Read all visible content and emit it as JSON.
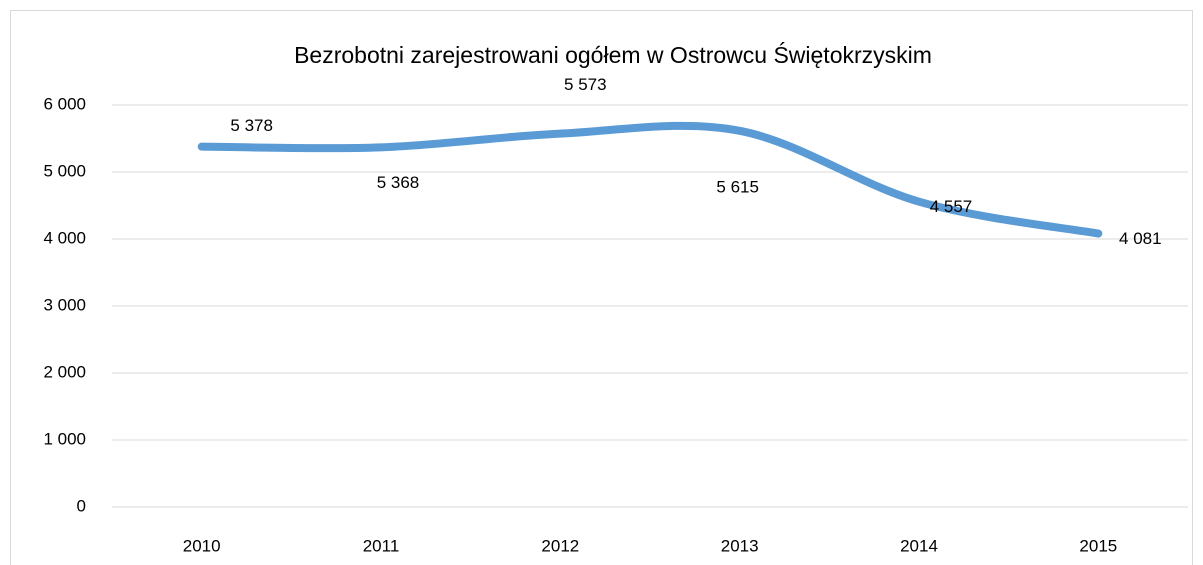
{
  "chart_data": {
    "type": "line",
    "title": "Bezrobotni zarejestrowani ogółem w Ostrowcu Świętokrzyskim",
    "categories": [
      "2010",
      "2011",
      "2012",
      "2013",
      "2014",
      "2015"
    ],
    "values": [
      5378,
      5368,
      5573,
      5615,
      4557,
      4081
    ],
    "value_labels": [
      "5 378",
      "5 368",
      "5 573",
      "5 615",
      "4 557",
      "4 081"
    ],
    "color": "#5b9bd5",
    "ylim": [
      0,
      6000
    ],
    "yticks": [
      {
        "value": 0,
        "label": "0"
      },
      {
        "value": 1000,
        "label": "1 000"
      },
      {
        "value": 2000,
        "label": "2 000"
      },
      {
        "value": 3000,
        "label": "3 000"
      },
      {
        "value": 4000,
        "label": "4 000"
      },
      {
        "value": 5000,
        "label": "5 000"
      },
      {
        "value": 6000,
        "label": "6 000"
      }
    ],
    "grid": true
  }
}
